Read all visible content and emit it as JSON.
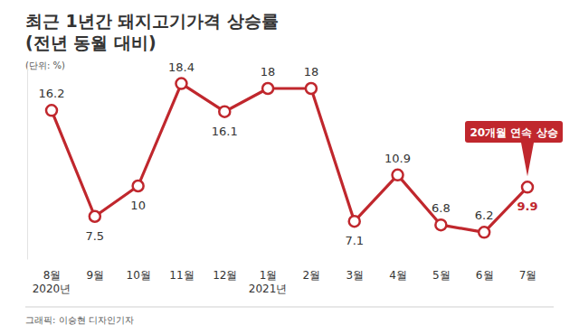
{
  "chart_data": {
    "type": "line",
    "title": "최근 1년간 돼지고기가격 상승률",
    "subtitle": "(전년 동월 대비)",
    "unit": "(단위: %)",
    "source": "그래픽: 이승현 디자인기자",
    "categories": [
      "8월",
      "9월",
      "10월",
      "11월",
      "12월",
      "1월",
      "2월",
      "3월",
      "4월",
      "5월",
      "6월",
      "7월"
    ],
    "x_sublabels": [
      "2020년",
      null,
      null,
      null,
      null,
      "2021년",
      null,
      null,
      null,
      null,
      null,
      null
    ],
    "values": [
      16.2,
      7.5,
      10,
      18.4,
      16.1,
      18,
      18,
      7.1,
      10.9,
      6.8,
      6.2,
      9.9
    ],
    "color": "#c0272d",
    "marker": "circle",
    "data_labels": true,
    "tick_labels": "x",
    "grid": false,
    "ylim": [
      4,
      20
    ],
    "annotations": [
      {
        "text": "20개월 연속 상승"
      }
    ]
  }
}
